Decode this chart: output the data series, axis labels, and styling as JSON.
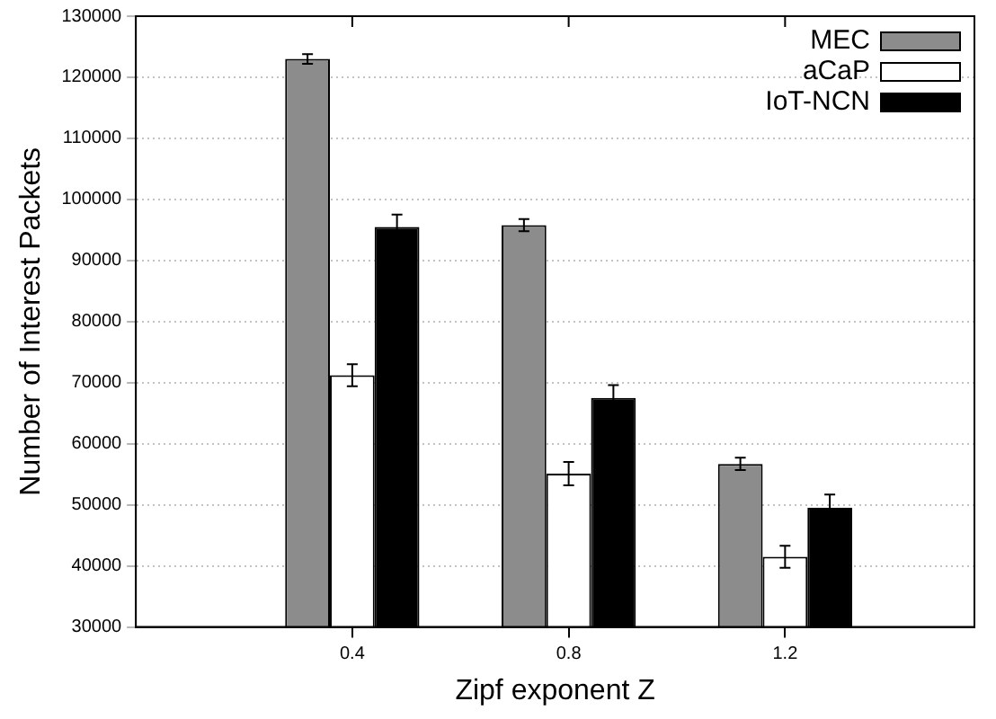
{
  "chart_data": {
    "type": "bar",
    "xlabel": "Zipf exponent Z",
    "ylabel": "Number of Interest Packets",
    "x": [
      0.4,
      0.8,
      1.2
    ],
    "xlim": [
      0,
      1.55
    ],
    "xticks": [
      0.4,
      0.8,
      1.2
    ],
    "ylim": [
      30000,
      130000
    ],
    "yticks": [
      30000,
      40000,
      50000,
      60000,
      70000,
      80000,
      90000,
      100000,
      110000,
      120000,
      130000
    ],
    "grid": "y",
    "legend": "top right",
    "series": [
      {
        "name": "MEC",
        "color": "#8c8c8c",
        "values": [
          123000,
          95800,
          56700
        ],
        "errors": [
          800,
          1000,
          1000
        ]
      },
      {
        "name": "aCaP",
        "color": "#ffffff",
        "values": [
          71200,
          55100,
          41500
        ],
        "errors": [
          1800,
          1900,
          1800
        ]
      },
      {
        "name": "IoT-NCN",
        "color": "#000000",
        "values": [
          95500,
          67500,
          49500
        ],
        "errors": [
          2000,
          2100,
          2200
        ]
      }
    ]
  }
}
